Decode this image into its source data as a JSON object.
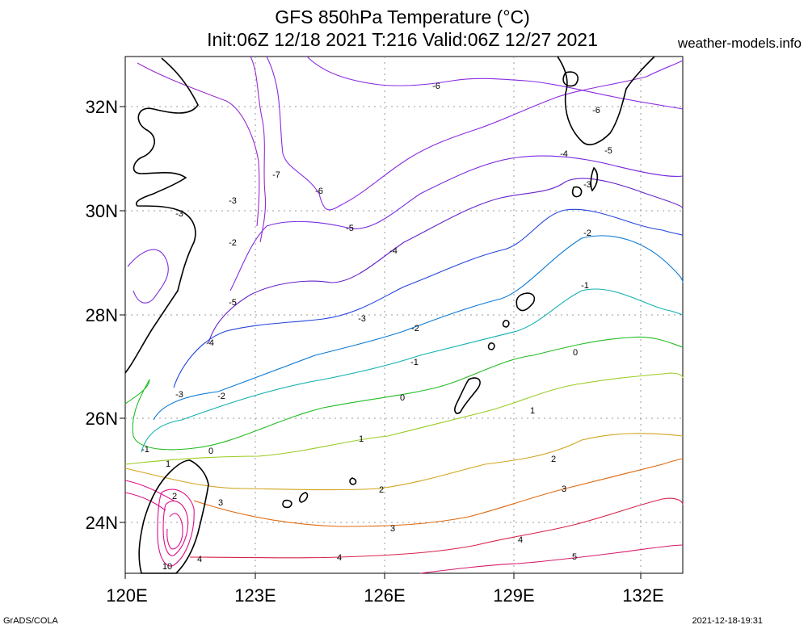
{
  "header": {
    "title_line1": "GFS 850hPa Temperature (°C)",
    "title_line2": "Init:06Z 12/18 2021 T:216 Valid:06Z 12/27 2021",
    "site": "weather-models.info"
  },
  "footer": {
    "left": "GrADS/COLA",
    "right": "2021-12-18-19:31"
  },
  "map": {
    "lat_labels": [
      "32N",
      "30N",
      "28N",
      "26N",
      "24N"
    ],
    "lon_labels": [
      "120E",
      "123E",
      "126E",
      "129E",
      "132E"
    ],
    "contour_labels": [
      "-7",
      "-6",
      "-6",
      "-6",
      "-5",
      "-5",
      "-5",
      "-4",
      "-4",
      "-4",
      "-3",
      "-3",
      "-3",
      "-3",
      "-3",
      "-2",
      "-2",
      "-2",
      "-2",
      "-1",
      "-1",
      "-1",
      "0",
      "0",
      "0",
      "1",
      "1",
      "1",
      "2",
      "2",
      "2",
      "3",
      "3",
      "3",
      "4",
      "4",
      "4",
      "5",
      "10"
    ],
    "colors": {
      "coast": "#000000",
      "grid": "#999999",
      "c_neg7": "#9a2bd0",
      "c_neg6": "#8a2be2",
      "c_neg5": "#7a2ce0",
      "c_neg4": "#6622cc",
      "c_neg3": "#2244dd",
      "c_neg2": "#0a7ad6",
      "c_neg1": "#12b0b0",
      "c_0": "#22bb22",
      "c_1": "#99cc22",
      "c_2": "#d1a51d",
      "c_3": "#e06a10",
      "c_4": "#d8234a",
      "c_5": "#d61a6e",
      "c_warm": "#e0108a"
    }
  }
}
